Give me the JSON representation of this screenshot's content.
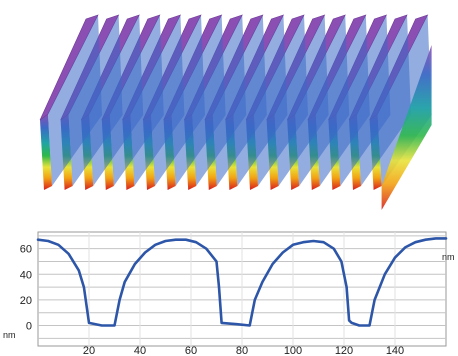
{
  "surface_view": {
    "ridge_count": 17,
    "color_scale": [
      "#d81e1e",
      "#f2a313",
      "#e8e33a",
      "#2fb84b",
      "#1fa3a6",
      "#3b69c6",
      "#8b4fb4"
    ]
  },
  "chart_data": {
    "type": "line",
    "title": "",
    "xlabel": "nm",
    "ylabel": "nm",
    "x_ticks": [
      "20",
      "40",
      "60",
      "80",
      "100",
      "120",
      "140"
    ],
    "y_ticks": [
      "60",
      "40",
      "20",
      "0"
    ],
    "xlim": [
      0,
      160
    ],
    "ylim": [
      -16,
      73
    ],
    "grid": true,
    "series": [
      {
        "color": "#2d56a8",
        "x": [
          0,
          4,
          8,
          12,
          16,
          18,
          20,
          25,
          30,
          32,
          34,
          38,
          42,
          46,
          50,
          54,
          58,
          62,
          66,
          70,
          71,
          72,
          78,
          83,
          85,
          88,
          92,
          96,
          100,
          104,
          108,
          112,
          116,
          119,
          121,
          122,
          123,
          126,
          130,
          132,
          136,
          140,
          144,
          148,
          152,
          156,
          160
        ],
        "y": [
          67,
          66,
          63,
          56,
          43,
          30,
          2,
          0,
          0,
          20,
          34,
          48,
          57,
          63,
          66,
          67,
          67,
          65,
          60,
          50,
          30,
          2,
          1,
          0,
          20,
          34,
          48,
          57,
          63,
          65,
          66,
          65,
          60,
          50,
          30,
          4,
          2,
          0,
          0,
          20,
          40,
          53,
          61,
          65,
          67,
          68,
          68
        ]
      }
    ]
  }
}
